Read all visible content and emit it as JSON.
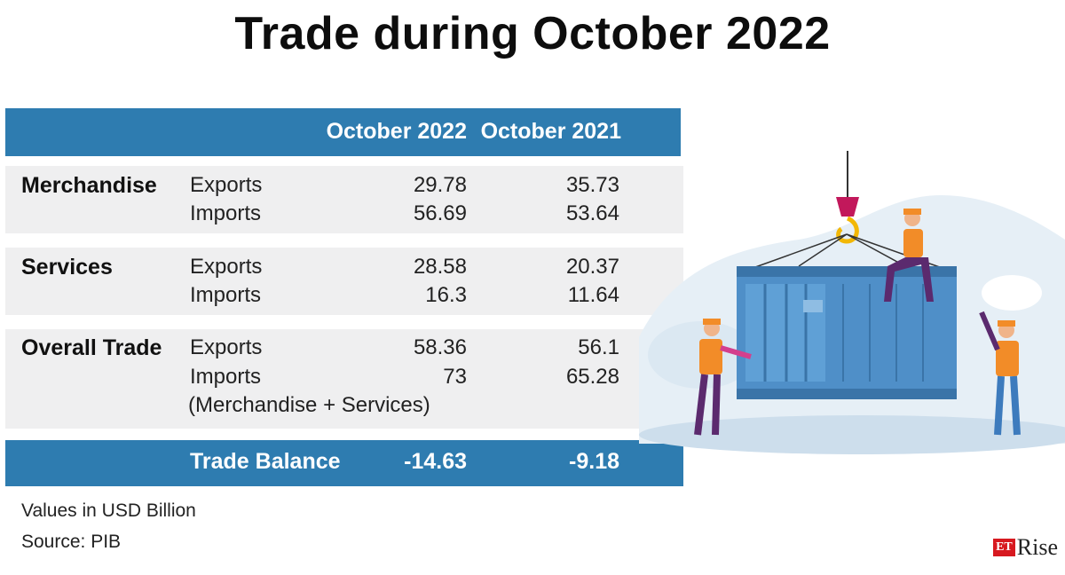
{
  "title": "Trade during October 2022",
  "header": {
    "col1": "October 2022",
    "col2": "October 2021"
  },
  "sections": [
    {
      "category": "Merchandise",
      "rows": [
        {
          "label": "Exports",
          "oct2022": "29.78",
          "oct2021": "35.73"
        },
        {
          "label": "Imports",
          "oct2022": "56.69",
          "oct2021": "53.64"
        }
      ]
    },
    {
      "category": "Services",
      "rows": [
        {
          "label": "Exports",
          "oct2022": "28.58",
          "oct2021": "20.37"
        },
        {
          "label": "Imports",
          "oct2022": "16.3",
          "oct2021": "11.64"
        }
      ]
    },
    {
      "category": "Overall Trade",
      "rows": [
        {
          "label": "Exports",
          "oct2022": "58.36",
          "oct2021": "56.1"
        },
        {
          "label": "Imports",
          "oct2022": "73",
          "oct2021": "65.28"
        }
      ],
      "note": "(Merchandise + Services)"
    }
  ],
  "balance": {
    "label": "Trade Balance",
    "oct2022": "-14.63",
    "oct2021": "-9.18"
  },
  "footnotes": {
    "units": "Values in USD Billion",
    "source": "Source: PIB"
  },
  "logo": {
    "et": "ET",
    "rise": "Rise"
  },
  "colors": {
    "header_blue": "#2e7cb0",
    "band_grey": "#efeff0",
    "container_blue": "#4f8fc8",
    "logo_red": "#d71920"
  }
}
